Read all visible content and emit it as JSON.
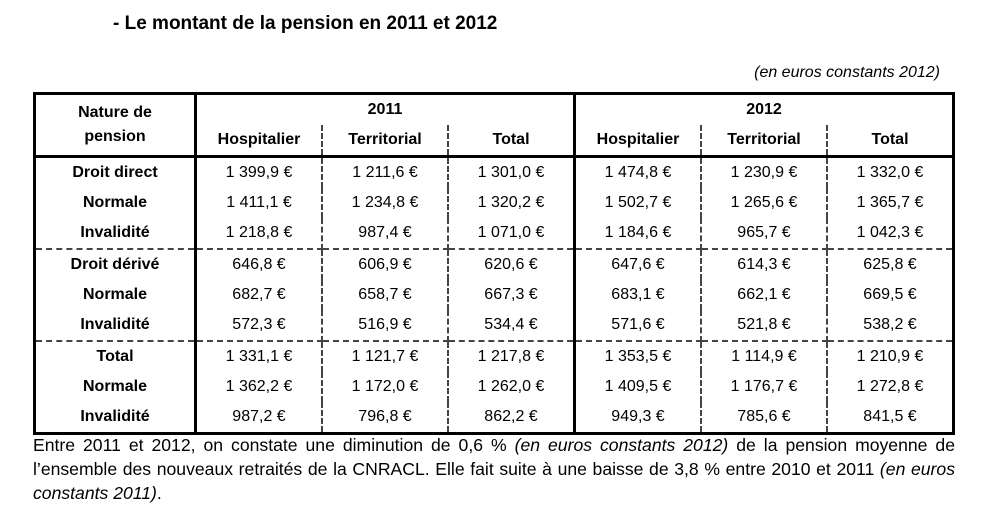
{
  "title": "- Le montant de la pension en 2011 et 2012",
  "note": "(en euros constants 2012)",
  "table": {
    "corner_label": [
      "Nature de",
      "pension"
    ],
    "years": [
      "2011",
      "2012"
    ],
    "columns": [
      "Hospitalier",
      "Territorial",
      "Total"
    ],
    "rows": [
      {
        "label": "Droit direct",
        "values": [
          "1 399,9 €",
          "1 211,6 €",
          "1 301,0 €",
          "1 474,8 €",
          "1 230,9 €",
          "1 332,0 €"
        ]
      },
      {
        "label": "Normale",
        "values": [
          "1 411,1 €",
          "1 234,8 €",
          "1 320,2 €",
          "1 502,7 €",
          "1 265,6 €",
          "1 365,7 €"
        ]
      },
      {
        "label": "Invalidité",
        "values": [
          "1 218,8 €",
          "987,4 €",
          "1 071,0 €",
          "1 184,6 €",
          "965,7 €",
          "1 042,3 €"
        ]
      },
      {
        "label": "Droit dérivé",
        "values": [
          "646,8 €",
          "606,9 €",
          "620,6 €",
          "647,6 €",
          "614,3 €",
          "625,8 €"
        ]
      },
      {
        "label": "Normale",
        "values": [
          "682,7 €",
          "658,7 €",
          "667,3 €",
          "683,1 €",
          "662,1 €",
          "669,5 €"
        ]
      },
      {
        "label": "Invalidité",
        "values": [
          "572,3 €",
          "516,9 €",
          "534,4 €",
          "571,6 €",
          "521,8 €",
          "538,2 €"
        ]
      },
      {
        "label": "Total",
        "values": [
          "1 331,1 €",
          "1 121,7 €",
          "1 217,8 €",
          "1 353,5 €",
          "1 114,9 €",
          "1 210,9 €"
        ]
      },
      {
        "label": "Normale",
        "values": [
          "1 362,2 €",
          "1 172,0 €",
          "1 262,0 €",
          "1 409,5 €",
          "1 176,7 €",
          "1 272,8 €"
        ]
      },
      {
        "label": "Invalidité",
        "values": [
          "987,2 €",
          "796,8 €",
          "862,2 €",
          "949,3 €",
          "785,6 €",
          "841,5 €"
        ]
      }
    ]
  },
  "paragraph": {
    "part1": "Entre 2011 et 2012, on constate une diminution de 0,6 % ",
    "part2": "(en euros constants 2012)",
    "part3": " de la pension moyenne de l’ensemble des nouveaux retraités de la CNRACL. Elle fait suite à une baisse de 3,8 % entre 2010 et 2011 ",
    "part4": "(en euros constants 2011)",
    "part5": "."
  }
}
